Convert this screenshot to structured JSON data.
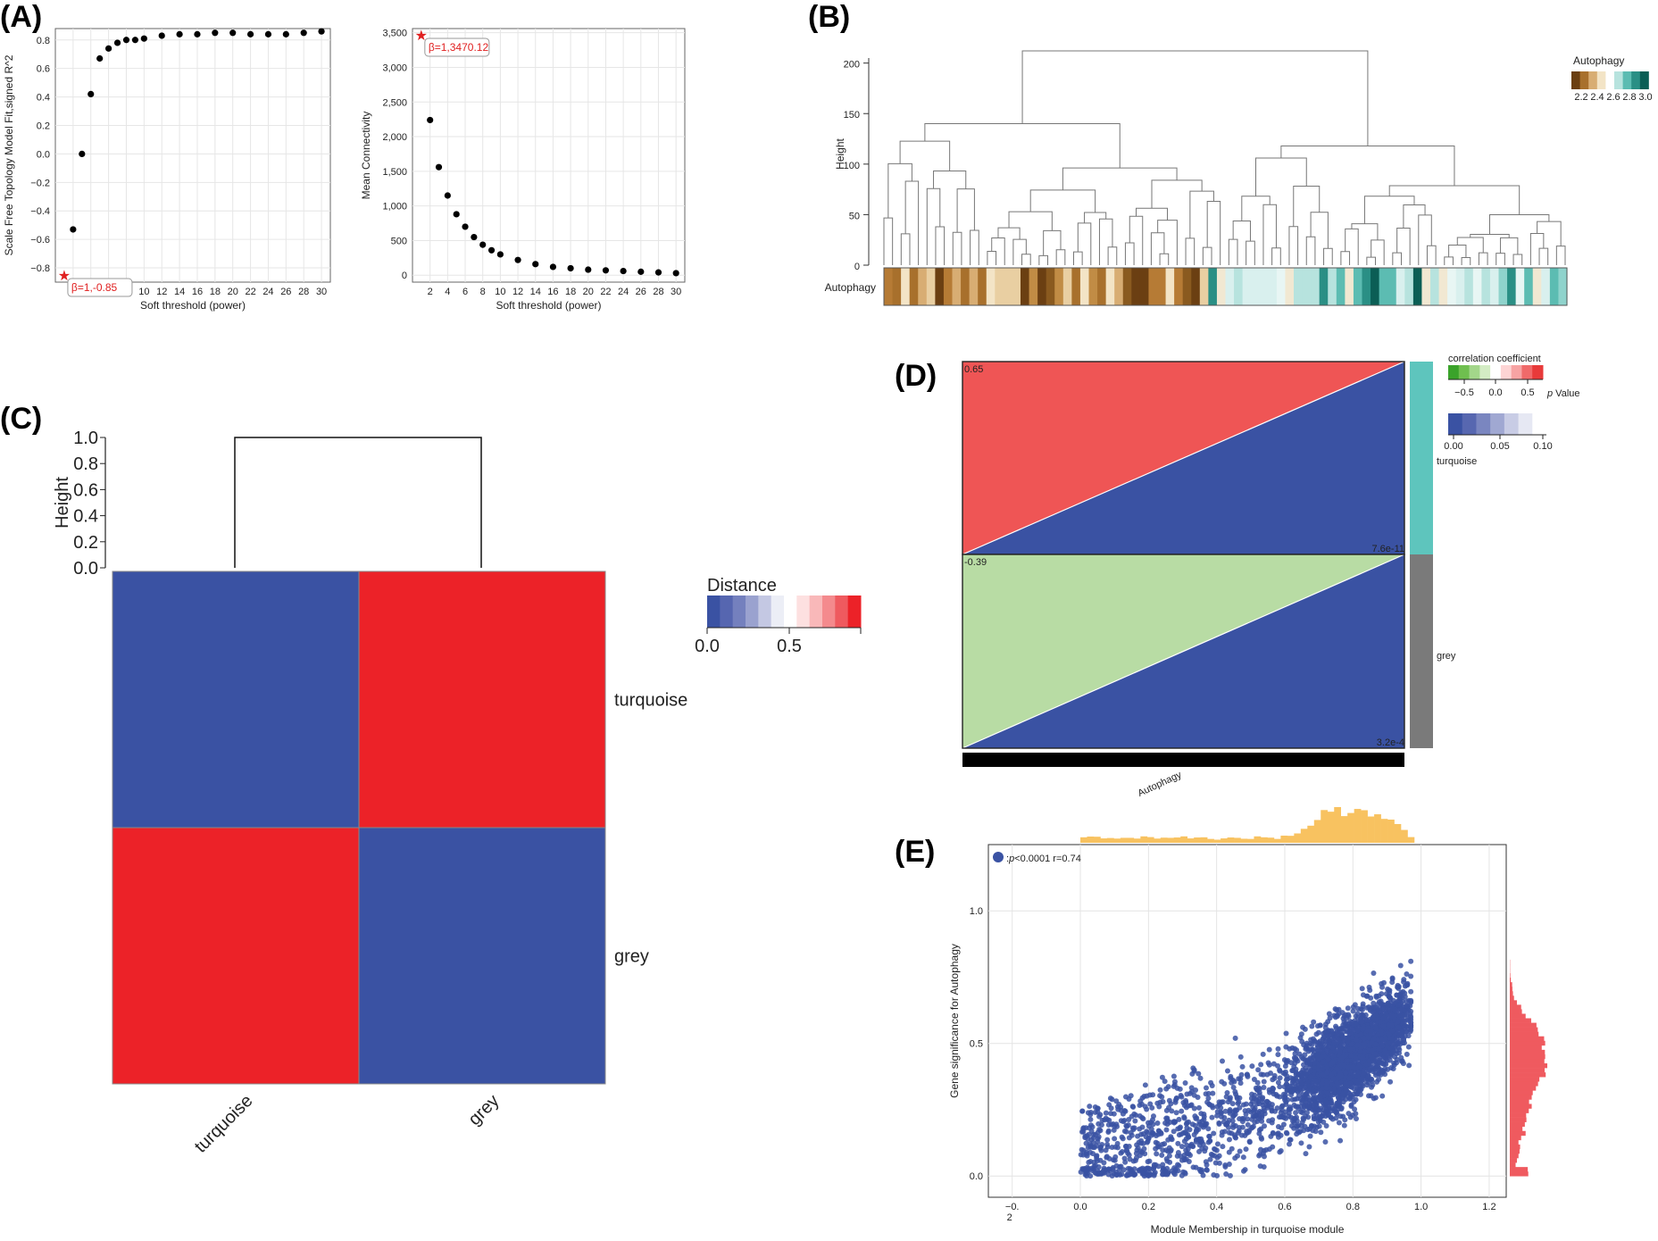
{
  "panels": {
    "A": "(A)",
    "B": "(B)",
    "C": "(C)",
    "D": "(D)",
    "E": "(E)"
  },
  "chart_data": [
    {
      "id": "A1",
      "type": "scatter",
      "xlabel": "Soft threshold (power)",
      "ylabel": "Scale Free Topology Model Fit,signed R^2",
      "xlim": [
        0,
        31
      ],
      "ylim": [
        -0.9,
        0.88
      ],
      "xticks": [
        2,
        4,
        6,
        8,
        10,
        12,
        14,
        16,
        18,
        20,
        22,
        24,
        26,
        28,
        30
      ],
      "yticks": [
        -0.8,
        -0.6,
        -0.4,
        -0.2,
        0.0,
        0.2,
        0.4,
        0.6,
        0.8
      ],
      "yticklabels": [
        "−0.8",
        "−0.6",
        "−0.4",
        "−0.2",
        "0.0",
        "0.2",
        "0.4",
        "0.6",
        "0.8"
      ],
      "x": [
        2,
        3,
        4,
        5,
        6,
        7,
        8,
        9,
        10,
        12,
        14,
        16,
        18,
        20,
        22,
        24,
        26,
        28,
        30
      ],
      "y": [
        -0.53,
        0.0,
        0.42,
        0.67,
        0.74,
        0.78,
        0.8,
        0.8,
        0.81,
        0.83,
        0.84,
        0.84,
        0.85,
        0.85,
        0.84,
        0.84,
        0.84,
        0.85,
        0.86
      ],
      "highlight": {
        "x": 1,
        "y": -0.85,
        "label": "β=1,-0.85"
      }
    },
    {
      "id": "A2",
      "type": "scatter",
      "xlabel": "Soft threshold (power)",
      "ylabel": "Mean Connectivity",
      "xlim": [
        0,
        31
      ],
      "ylim": [
        -100,
        3560
      ],
      "xticks": [
        2,
        4,
        6,
        8,
        10,
        12,
        14,
        16,
        18,
        20,
        22,
        24,
        26,
        28,
        30
      ],
      "yticks": [
        0,
        500,
        1000,
        1500,
        2000,
        2500,
        3000,
        3500
      ],
      "yticklabels": [
        "0",
        "500",
        "1,000",
        "1,500",
        "2,000",
        "2,500",
        "3,000",
        "3,500"
      ],
      "x": [
        2,
        3,
        4,
        5,
        6,
        7,
        8,
        9,
        10,
        12,
        14,
        16,
        18,
        20,
        22,
        24,
        26,
        28,
        30
      ],
      "y": [
        2240,
        1560,
        1150,
        880,
        700,
        550,
        440,
        360,
        300,
        220,
        160,
        120,
        100,
        80,
        70,
        60,
        50,
        40,
        30
      ],
      "highlight": {
        "x": 1,
        "y": 3470.12,
        "label": "β=1,3470.12"
      }
    },
    {
      "id": "B",
      "type": "dendrogram",
      "ylabel": "Height",
      "ylim": [
        0,
        220
      ],
      "yticks": [
        0,
        50,
        100,
        150,
        200
      ],
      "row_label": "Autophagy",
      "legend": {
        "title": "Autophagy",
        "ticks": [
          "2.2",
          "2.4",
          "2.6",
          "2.8",
          "3.0"
        ]
      }
    },
    {
      "id": "C",
      "type": "heatmap",
      "dendrogram_ylabel": "Height",
      "dendrogram_yticks": [
        "0.0",
        "0.2",
        "0.4",
        "0.6",
        "0.8",
        "1.0"
      ],
      "rows": [
        "turquoise",
        "grey"
      ],
      "cols": [
        "turquoise",
        "grey"
      ],
      "values": [
        [
          0.0,
          0.95
        ],
        [
          0.95,
          0.0
        ]
      ],
      "legend": {
        "title": "Distance",
        "ticks": [
          "0.0",
          "0.5"
        ]
      }
    },
    {
      "id": "D",
      "type": "heatmap",
      "rows": [
        "turquoise",
        "grey"
      ],
      "cols": [
        "Autophagy"
      ],
      "col_label": "Autophagy",
      "correlation": [
        0.65,
        -0.39
      ],
      "p_value": [
        "7.6e-11",
        "3.2e-4"
      ],
      "legend_corr": {
        "title": "correlation coefficient",
        "ticks": [
          "−0.5",
          "0.0",
          "0.5"
        ]
      },
      "legend_p": {
        "title": "p Value",
        "italic": "p",
        "rest": " Value",
        "ticks": [
          "0.00",
          "0.05",
          "0.10"
        ]
      }
    },
    {
      "id": "E",
      "type": "scatter",
      "xlabel": "Module Membership in turquoise module",
      "ylabel": "Gene significance for Autophagy",
      "xlim": [
        -0.27,
        1.25
      ],
      "ylim": [
        -0.08,
        1.25
      ],
      "xticks": [
        -0.2,
        0.0,
        0.2,
        0.4,
        0.6,
        0.8,
        1.0,
        1.2
      ],
      "xticklabels": [
        "−0.",
        "0.0",
        "0.2",
        "0.4",
        "0.6",
        "0.8",
        "1.0",
        "1.2"
      ],
      "xtick_extra": "2",
      "yticks": [
        0.0,
        0.5,
        1.0
      ],
      "yticklabels": [
        "0.0",
        "0.5",
        "1.0"
      ],
      "annotation": {
        "p": "p",
        "text": "<0.0001 r=0.74"
      },
      "n_points": 3200
    }
  ]
}
